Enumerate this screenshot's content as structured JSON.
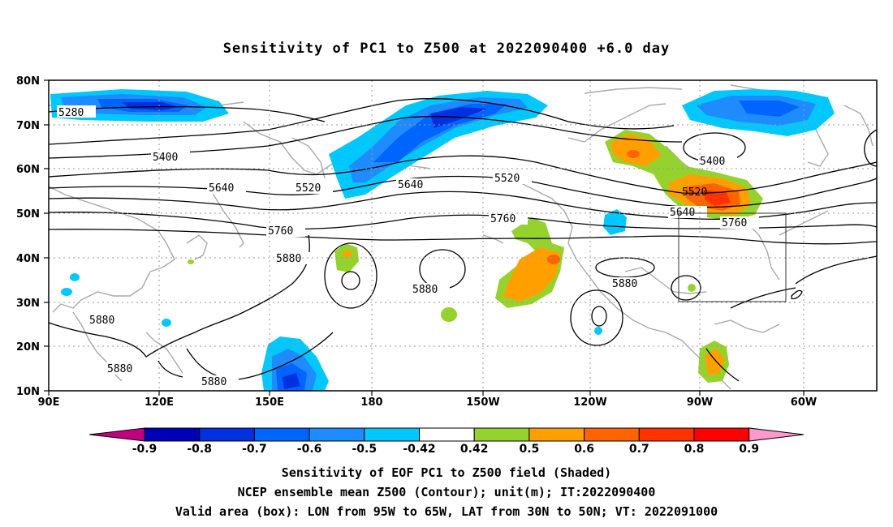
{
  "title": "Sensitivity of PC1 to Z500 at 2022090400 +6.0 day",
  "lat_labels": [
    "80N",
    "70N",
    "60N",
    "50N",
    "40N",
    "30N",
    "20N",
    "10N"
  ],
  "lon_labels": [
    "90E",
    "120E",
    "150E",
    "180",
    "150W",
    "120W",
    "90W",
    "60W"
  ],
  "contour_labels": [
    {
      "text": "5280"
    },
    {
      "text": "5400"
    },
    {
      "text": "5520"
    },
    {
      "text": "5520"
    },
    {
      "text": "5640"
    },
    {
      "text": "5640"
    },
    {
      "text": "5760"
    },
    {
      "text": "5760"
    },
    {
      "text": "5880"
    },
    {
      "text": "5880"
    },
    {
      "text": "5880"
    },
    {
      "text": "5880"
    },
    {
      "text": "5880"
    },
    {
      "text": "5880"
    },
    {
      "text": "5400"
    },
    {
      "text": "5520"
    },
    {
      "text": "5640"
    },
    {
      "text": "5760"
    }
  ],
  "colorbar": {
    "labels": [
      "-0.9",
      "-0.8",
      "-0.7",
      "-0.6",
      "-0.5",
      "-0.42",
      "0.42",
      "0.5",
      "0.6",
      "0.7",
      "0.8",
      "0.9"
    ],
    "colors": [
      "#c00080",
      "#0000b4",
      "#0030e0",
      "#0064ff",
      "#1e8cff",
      "#00c8ff",
      "#ffffff",
      "#96d22d",
      "#ffa000",
      "#ff6400",
      "#ff3200",
      "#ff0000",
      "#ff99cc"
    ]
  },
  "footer": {
    "line1": "Sensitivity of EOF PC1 to Z500 field (Shaded)",
    "line2": "NCEP ensemble mean Z500 (Contour); unit(m); IT:2022090400",
    "line3": "Valid area (box): LON from 95W to 65W, LAT from 30N to 50N; VT: 2022091000"
  }
}
